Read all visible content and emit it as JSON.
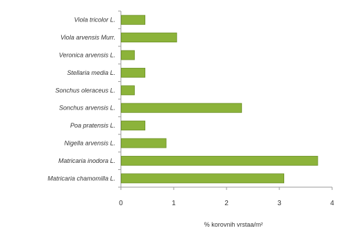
{
  "chart_data": {
    "type": "bar",
    "orientation": "horizontal",
    "title": "",
    "xlabel": "% korovnih vrstaa/m²",
    "ylabel": "",
    "xlim": [
      0,
      4
    ],
    "x_ticks": [
      "0",
      "1",
      "2",
      "3",
      "4"
    ],
    "grid": false,
    "legend": "none",
    "bar_color": "#8cb33a",
    "bar_edge_color": "#6a8f24",
    "categories": [
      "Viola tricolor L.",
      "Viola arvensis Murr.",
      "Veronica arvensis L.",
      "Stellaria media L.",
      "Sonchus oleraceus L.",
      "Sonchus arvensis L.",
      "Poa pratensis L.",
      "Nigella arvensis L.",
      "Matricaria inodora L.",
      "Matricaria chamomilla L."
    ],
    "values": [
      0.45,
      1.05,
      0.25,
      0.45,
      0.25,
      2.28,
      0.45,
      0.85,
      3.72,
      3.08
    ]
  }
}
